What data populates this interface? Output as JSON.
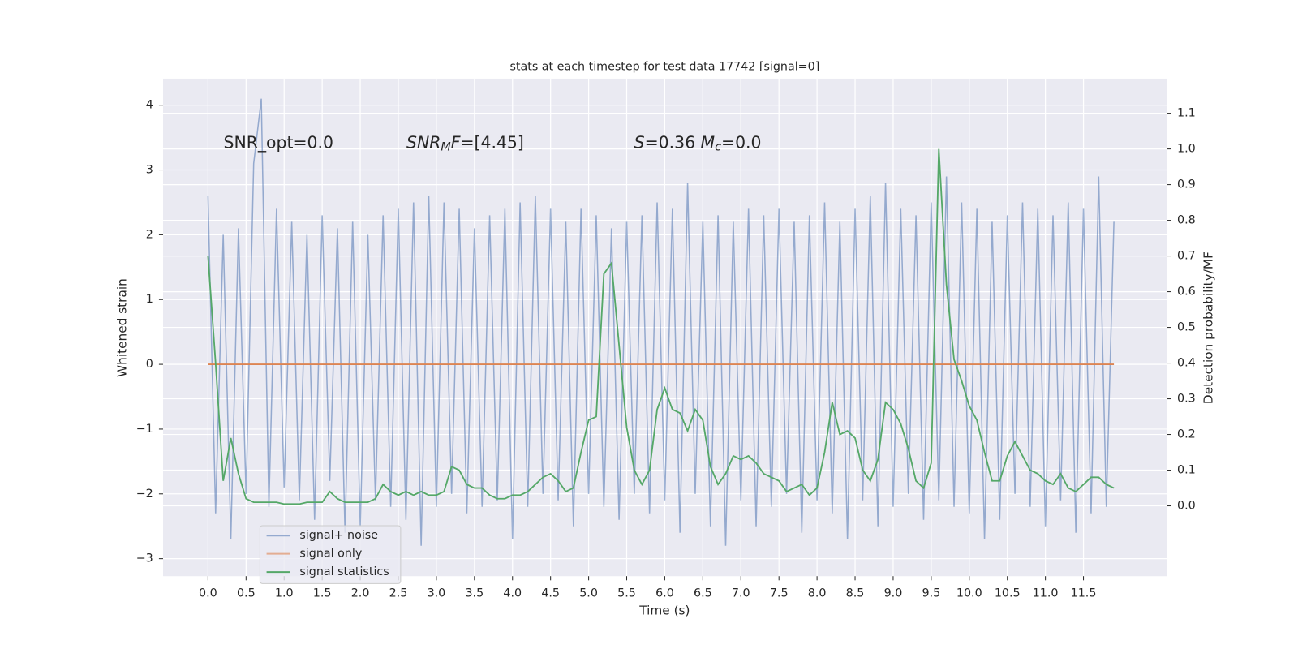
{
  "chart_data": {
    "type": "line",
    "title": "stats at each timestep for test data 17742 [signal=0]",
    "xlabel": "Time (s)",
    "ylabel": "Whitened strain",
    "y2label": "Detection probability/MF",
    "annotations": [
      [
        {
          "t": "SNR_opt=0.0"
        }
      ],
      [
        {
          "t": "SNR",
          "i": true
        },
        {
          "t": "M",
          "i": true,
          "sub": true
        },
        {
          "t": "F",
          "i": true
        },
        {
          "t": "=[4.45]"
        }
      ],
      [
        {
          "t": "S",
          "i": true
        },
        {
          "t": "=0.36   "
        },
        {
          "t": "M",
          "i": true
        },
        {
          "t": "c",
          "i": true,
          "sub": true
        },
        {
          "t": "=0.0"
        }
      ]
    ],
    "x": [
      0.0,
      0.1,
      0.2,
      0.3,
      0.4,
      0.5,
      0.6,
      0.7,
      0.8,
      0.9,
      1.0,
      1.1,
      1.2,
      1.3,
      1.4,
      1.5,
      1.6,
      1.7,
      1.8,
      1.9,
      2.0,
      2.1,
      2.2,
      2.3,
      2.4,
      2.5,
      2.6,
      2.7,
      2.8,
      2.9,
      3.0,
      3.1,
      3.2,
      3.3,
      3.4,
      3.5,
      3.6,
      3.7,
      3.8,
      3.9,
      4.0,
      4.1,
      4.2,
      4.3,
      4.4,
      4.5,
      4.6,
      4.7,
      4.8,
      4.9,
      5.0,
      5.1,
      5.2,
      5.3,
      5.4,
      5.5,
      5.6,
      5.7,
      5.8,
      5.9,
      6.0,
      6.1,
      6.2,
      6.3,
      6.4,
      6.5,
      6.6,
      6.7,
      6.8,
      6.9,
      7.0,
      7.1,
      7.2,
      7.3,
      7.4,
      7.5,
      7.6,
      7.7,
      7.8,
      7.9,
      8.0,
      8.1,
      8.2,
      8.3,
      8.4,
      8.5,
      8.6,
      8.7,
      8.8,
      8.9,
      9.0,
      9.1,
      9.2,
      9.3,
      9.4,
      9.5,
      9.6,
      9.7,
      9.8,
      9.9,
      10.0,
      10.1,
      10.2,
      10.3,
      10.4,
      10.5,
      10.6,
      10.7,
      10.8,
      10.9,
      11.0,
      11.1,
      11.2,
      11.3,
      11.4,
      11.5,
      11.6,
      11.7,
      11.8,
      11.9
    ],
    "series": [
      {
        "name": "signal+ noise",
        "color": "#4c72b0",
        "axis": "y",
        "values": [
          2.6,
          -2.3,
          2.0,
          -2.7,
          2.1,
          -2.0,
          3.1,
          4.1,
          -2.2,
          2.4,
          -1.9,
          2.2,
          -2.1,
          2.0,
          -2.4,
          2.3,
          -1.8,
          2.1,
          -2.6,
          2.2,
          -2.5,
          2.0,
          -2.1,
          2.3,
          -2.2,
          2.4,
          -2.4,
          2.5,
          -2.8,
          2.6,
          -2.2,
          2.5,
          -2.0,
          2.4,
          -2.3,
          2.1,
          -2.2,
          2.3,
          -2.1,
          2.4,
          -2.7,
          2.5,
          -2.2,
          2.6,
          -2.0,
          2.4,
          -2.1,
          2.2,
          -2.5,
          2.4,
          -2.0,
          2.3,
          -2.2,
          2.1,
          -2.4,
          2.2,
          -2.0,
          2.3,
          -2.3,
          2.5,
          -2.1,
          2.4,
          -2.6,
          2.8,
          -2.0,
          2.2,
          -2.5,
          2.3,
          -2.8,
          2.2,
          -2.1,
          2.4,
          -2.5,
          2.3,
          -2.2,
          2.4,
          -2.0,
          2.2,
          -2.6,
          2.3,
          -2.1,
          2.5,
          -2.3,
          2.2,
          -2.7,
          2.4,
          -2.1,
          2.6,
          -2.5,
          2.8,
          -2.2,
          2.4,
          -2.0,
          2.3,
          -2.4,
          2.5,
          -2.1,
          2.9,
          -2.2,
          2.5,
          -2.3,
          2.4,
          -2.7,
          2.2,
          -2.4,
          2.3,
          -2.0,
          2.5,
          -2.2,
          2.4,
          -2.5,
          2.3,
          -2.1,
          2.5,
          -2.6,
          2.4,
          -2.3,
          2.9,
          -2.2,
          2.2
        ]
      },
      {
        "name": "signal only",
        "color": "#dd8452",
        "axis": "y",
        "values": [
          0,
          0,
          0,
          0,
          0,
          0,
          0,
          0,
          0,
          0,
          0,
          0,
          0,
          0,
          0,
          0,
          0,
          0,
          0,
          0,
          0,
          0,
          0,
          0,
          0,
          0,
          0,
          0,
          0,
          0,
          0,
          0,
          0,
          0,
          0,
          0,
          0,
          0,
          0,
          0,
          0,
          0,
          0,
          0,
          0,
          0,
          0,
          0,
          0,
          0,
          0,
          0,
          0,
          0,
          0,
          0,
          0,
          0,
          0,
          0,
          0,
          0,
          0,
          0,
          0,
          0,
          0,
          0,
          0,
          0,
          0,
          0,
          0,
          0,
          0,
          0,
          0,
          0,
          0,
          0,
          0,
          0,
          0,
          0,
          0,
          0,
          0,
          0,
          0,
          0,
          0,
          0,
          0,
          0,
          0,
          0,
          0,
          0,
          0,
          0,
          0,
          0,
          0,
          0,
          0,
          0,
          0,
          0,
          0,
          0,
          0,
          0,
          0,
          0,
          0,
          0,
          0,
          0,
          0,
          0
        ]
      },
      {
        "name": "signal statistics",
        "color": "#55a868",
        "axis": "y2",
        "values": [
          0.7,
          0.4,
          0.07,
          0.19,
          0.09,
          0.02,
          0.01,
          0.01,
          0.01,
          0.01,
          0.005,
          0.005,
          0.005,
          0.01,
          0.01,
          0.01,
          0.04,
          0.02,
          0.01,
          0.01,
          0.01,
          0.01,
          0.02,
          0.06,
          0.04,
          0.03,
          0.04,
          0.03,
          0.04,
          0.03,
          0.03,
          0.04,
          0.11,
          0.1,
          0.06,
          0.05,
          0.05,
          0.03,
          0.02,
          0.02,
          0.03,
          0.03,
          0.04,
          0.06,
          0.08,
          0.09,
          0.07,
          0.04,
          0.05,
          0.15,
          0.24,
          0.25,
          0.65,
          0.68,
          0.45,
          0.22,
          0.1,
          0.06,
          0.1,
          0.27,
          0.33,
          0.27,
          0.26,
          0.21,
          0.27,
          0.24,
          0.11,
          0.06,
          0.09,
          0.14,
          0.13,
          0.14,
          0.12,
          0.09,
          0.08,
          0.07,
          0.04,
          0.05,
          0.06,
          0.03,
          0.05,
          0.15,
          0.29,
          0.2,
          0.21,
          0.19,
          0.1,
          0.07,
          0.13,
          0.29,
          0.27,
          0.23,
          0.16,
          0.07,
          0.05,
          0.12,
          1.0,
          0.62,
          0.41,
          0.35,
          0.28,
          0.24,
          0.15,
          0.07,
          0.07,
          0.14,
          0.18,
          0.14,
          0.1,
          0.09,
          0.07,
          0.06,
          0.09,
          0.05,
          0.04,
          0.06,
          0.08,
          0.08,
          0.06,
          0.05
        ]
      }
    ],
    "xlim": [
      -0.59,
      12.6
    ],
    "ylim": [
      -3.27,
      4.41
    ],
    "y2lim": [
      -0.197,
      1.197
    ],
    "xticks": [
      {
        "value": 0,
        "label": "0.0"
      },
      {
        "value": 0.5,
        "label": "0.5"
      },
      {
        "value": 1,
        "label": "1.0"
      },
      {
        "value": 1.5,
        "label": "1.5"
      },
      {
        "value": 2,
        "label": "2.0"
      },
      {
        "value": 2.5,
        "label": "2.5"
      },
      {
        "value": 3,
        "label": "3.0"
      },
      {
        "value": 3.5,
        "label": "3.5"
      },
      {
        "value": 4,
        "label": "4.0"
      },
      {
        "value": 4.5,
        "label": "4.5"
      },
      {
        "value": 5,
        "label": "5.0"
      },
      {
        "value": 5.5,
        "label": "5.5"
      },
      {
        "value": 6,
        "label": "6.0"
      },
      {
        "value": 6.5,
        "label": "6.5"
      },
      {
        "value": 7,
        "label": "7.0"
      },
      {
        "value": 7.5,
        "label": "7.5"
      },
      {
        "value": 8,
        "label": "8.0"
      },
      {
        "value": 8.5,
        "label": "8.5"
      },
      {
        "value": 9,
        "label": "9.0"
      },
      {
        "value": 9.5,
        "label": "9.5"
      },
      {
        "value": 10,
        "label": "10.0"
      },
      {
        "value": 10.5,
        "label": "10.5"
      },
      {
        "value": 11,
        "label": "11.0"
      },
      {
        "value": 11.5,
        "label": "11.5"
      }
    ],
    "yticks": [
      {
        "value": -3,
        "label": "−3"
      },
      {
        "value": -2,
        "label": "−2"
      },
      {
        "value": -1,
        "label": "−1"
      },
      0,
      1,
      2,
      3,
      4
    ],
    "y2ticks": [
      {
        "value": 0,
        "label": "0.0"
      },
      {
        "value": 0.1,
        "label": "0.1"
      },
      {
        "value": 0.2,
        "label": "0.2"
      },
      {
        "value": 0.3,
        "label": "0.3"
      },
      {
        "value": 0.4,
        "label": "0.4"
      },
      {
        "value": 0.5,
        "label": "0.5"
      },
      {
        "value": 0.6,
        "label": "0.6"
      },
      {
        "value": 0.7,
        "label": "0.7"
      },
      {
        "value": 0.8,
        "label": "0.8"
      },
      {
        "value": 0.9,
        "label": "0.9"
      },
      {
        "value": 1.0,
        "label": "1.0"
      },
      {
        "value": 1.1,
        "label": "1.1"
      }
    ],
    "grid": true,
    "legend": "lower left"
  }
}
